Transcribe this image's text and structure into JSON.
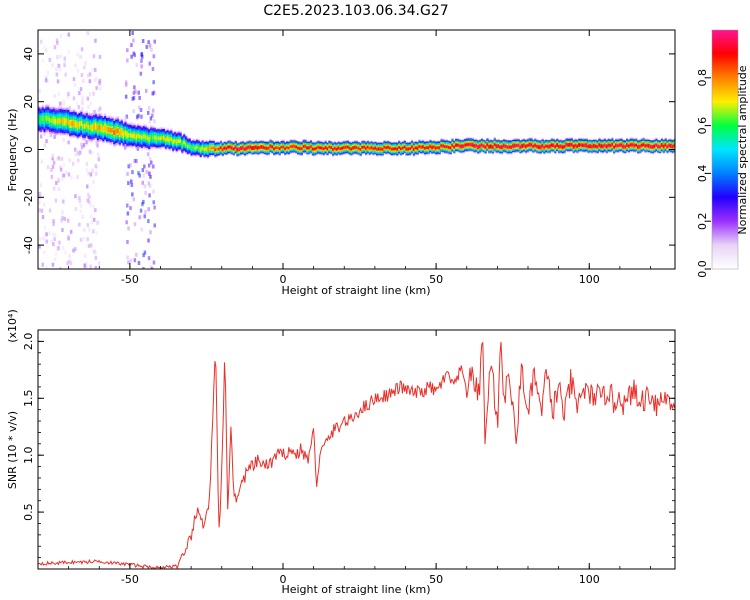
{
  "figure": {
    "title": "C2E5.2023.103.06.34.G27"
  },
  "chart_data": [
    {
      "type": "heatmap",
      "xlabel": "Height of straight line (km)",
      "ylabel": "Frequency (Hz)",
      "xlim": [
        -80,
        128
      ],
      "ylim": [
        -50,
        50
      ],
      "x_ticks": [
        -50,
        0,
        50,
        100
      ],
      "y_ticks": [
        -40,
        -20,
        0,
        20,
        40
      ],
      "colorbar": {
        "label": "Normalized spectral amplitude",
        "range": [
          0,
          1
        ],
        "ticks": [
          0.0,
          0.2,
          0.4,
          0.6,
          0.8
        ],
        "tick_labels": [
          "0.0",
          "0.2",
          "0.4",
          "0.6",
          "0.8"
        ],
        "colormap": [
          "#ffffff",
          "#e8d4f5",
          "#9b30ff",
          "#2200ff",
          "#0080ff",
          "#00e5ff",
          "#00ff40",
          "#ffee00",
          "#ff8000",
          "#ff0000",
          "#ff1493"
        ]
      },
      "ridge": {
        "x": [
          -80,
          -75,
          -70,
          -65,
          -60,
          -55,
          -50,
          -45,
          -40,
          -35,
          -30,
          -25,
          -20,
          -15,
          -10,
          -5,
          0,
          5,
          10,
          20,
          30,
          40,
          50,
          60,
          70,
          80,
          90,
          100,
          110,
          128
        ],
        "y": [
          13,
          12,
          11,
          10,
          9,
          7.5,
          6,
          5,
          4.5,
          3.5,
          1,
          0,
          0.5,
          0.5,
          0.5,
          1,
          0.5,
          1,
          0.5,
          0.5,
          0.5,
          0.5,
          1,
          1.5,
          1.5,
          1.5,
          1.5,
          1.5,
          1.5,
          1.5
        ],
        "amplitude": [
          0.6,
          0.7,
          0.75,
          0.7,
          0.75,
          0.8,
          0.7,
          0.65,
          0.7,
          0.7,
          0.6,
          0.75,
          0.9,
          0.95,
          0.95,
          0.9,
          0.85,
          0.9,
          0.9,
          0.9,
          0.9,
          0.9,
          0.9,
          0.95,
          0.95,
          0.95,
          0.95,
          0.95,
          0.95,
          0.95
        ],
        "spread_hz": [
          4,
          4,
          4,
          4,
          4,
          4,
          3.5,
          3.5,
          3,
          3,
          2.5,
          2.5,
          2,
          2,
          2,
          2,
          2,
          2,
          2,
          2,
          2,
          2,
          2,
          2,
          2,
          2,
          2,
          2,
          2,
          2
        ]
      },
      "noise_bands": [
        {
          "x_from": -80,
          "x_to": -60,
          "amplitude": 0.18
        },
        {
          "x_from": -52,
          "x_to": -42,
          "amplitude": 0.35
        }
      ]
    },
    {
      "type": "line",
      "xlabel": "Height of straight line (km)",
      "ylabel": "SNR (10 * v/v)",
      "y_multiplier_label": "(x10⁴)",
      "xlim": [
        -80,
        128
      ],
      "ylim": [
        0,
        2.1
      ],
      "x_ticks": [
        -50,
        0,
        50,
        100
      ],
      "y_ticks": [
        0.5,
        1.0,
        1.5,
        2.0
      ],
      "y_tick_labels": [
        "0.5",
        "1.0",
        "1.5",
        "2.0"
      ],
      "series": [
        {
          "color": "#e8302a",
          "x": [
            -80,
            -75,
            -70,
            -65,
            -60,
            -55,
            -50,
            -45,
            -40,
            -35,
            -32,
            -30,
            -28,
            -26,
            -24,
            -22,
            -21,
            -20,
            -19,
            -18,
            -17,
            -16,
            -14,
            -12,
            -10,
            -8,
            -5,
            -2,
            0,
            2,
            4,
            6,
            8,
            10,
            11,
            12,
            14,
            16,
            18,
            20,
            22,
            25,
            28,
            30,
            33,
            36,
            38,
            40,
            42,
            45,
            48,
            50,
            52,
            54,
            56,
            58,
            60,
            62,
            64,
            65,
            66,
            68,
            70,
            71,
            72,
            74,
            76,
            78,
            80,
            82,
            84,
            86,
            88,
            90,
            92,
            94,
            96,
            98,
            100,
            102,
            104,
            106,
            108,
            110,
            112,
            114,
            116,
            118,
            120,
            122,
            124,
            126,
            128
          ],
          "y": [
            0.05,
            0.05,
            0.06,
            0.06,
            0.07,
            0.05,
            0.04,
            0.02,
            0.01,
            0.03,
            0.1,
            0.3,
            0.5,
            0.4,
            0.6,
            1.95,
            0.3,
            0.8,
            1.9,
            0.5,
            1.3,
            0.6,
            0.7,
            0.85,
            0.9,
            0.95,
            0.9,
            1.0,
            1.0,
            1.05,
            1.0,
            1.05,
            0.95,
            1.2,
            0.75,
            1.0,
            1.1,
            1.2,
            1.25,
            1.3,
            1.3,
            1.4,
            1.45,
            1.5,
            1.52,
            1.55,
            1.6,
            1.58,
            1.55,
            1.55,
            1.6,
            1.55,
            1.65,
            1.7,
            1.6,
            1.75,
            1.6,
            1.7,
            1.5,
            2.15,
            1.1,
            1.9,
            1.2,
            2.1,
            1.5,
            1.7,
            1.1,
            1.8,
            1.3,
            1.75,
            1.35,
            1.7,
            1.4,
            1.6,
            1.35,
            1.65,
            1.4,
            1.6,
            1.5,
            1.55,
            1.45,
            1.6,
            1.45,
            1.55,
            1.4,
            1.6,
            1.45,
            1.5,
            1.55,
            1.45,
            1.5,
            1.5,
            1.45
          ]
        }
      ]
    }
  ]
}
